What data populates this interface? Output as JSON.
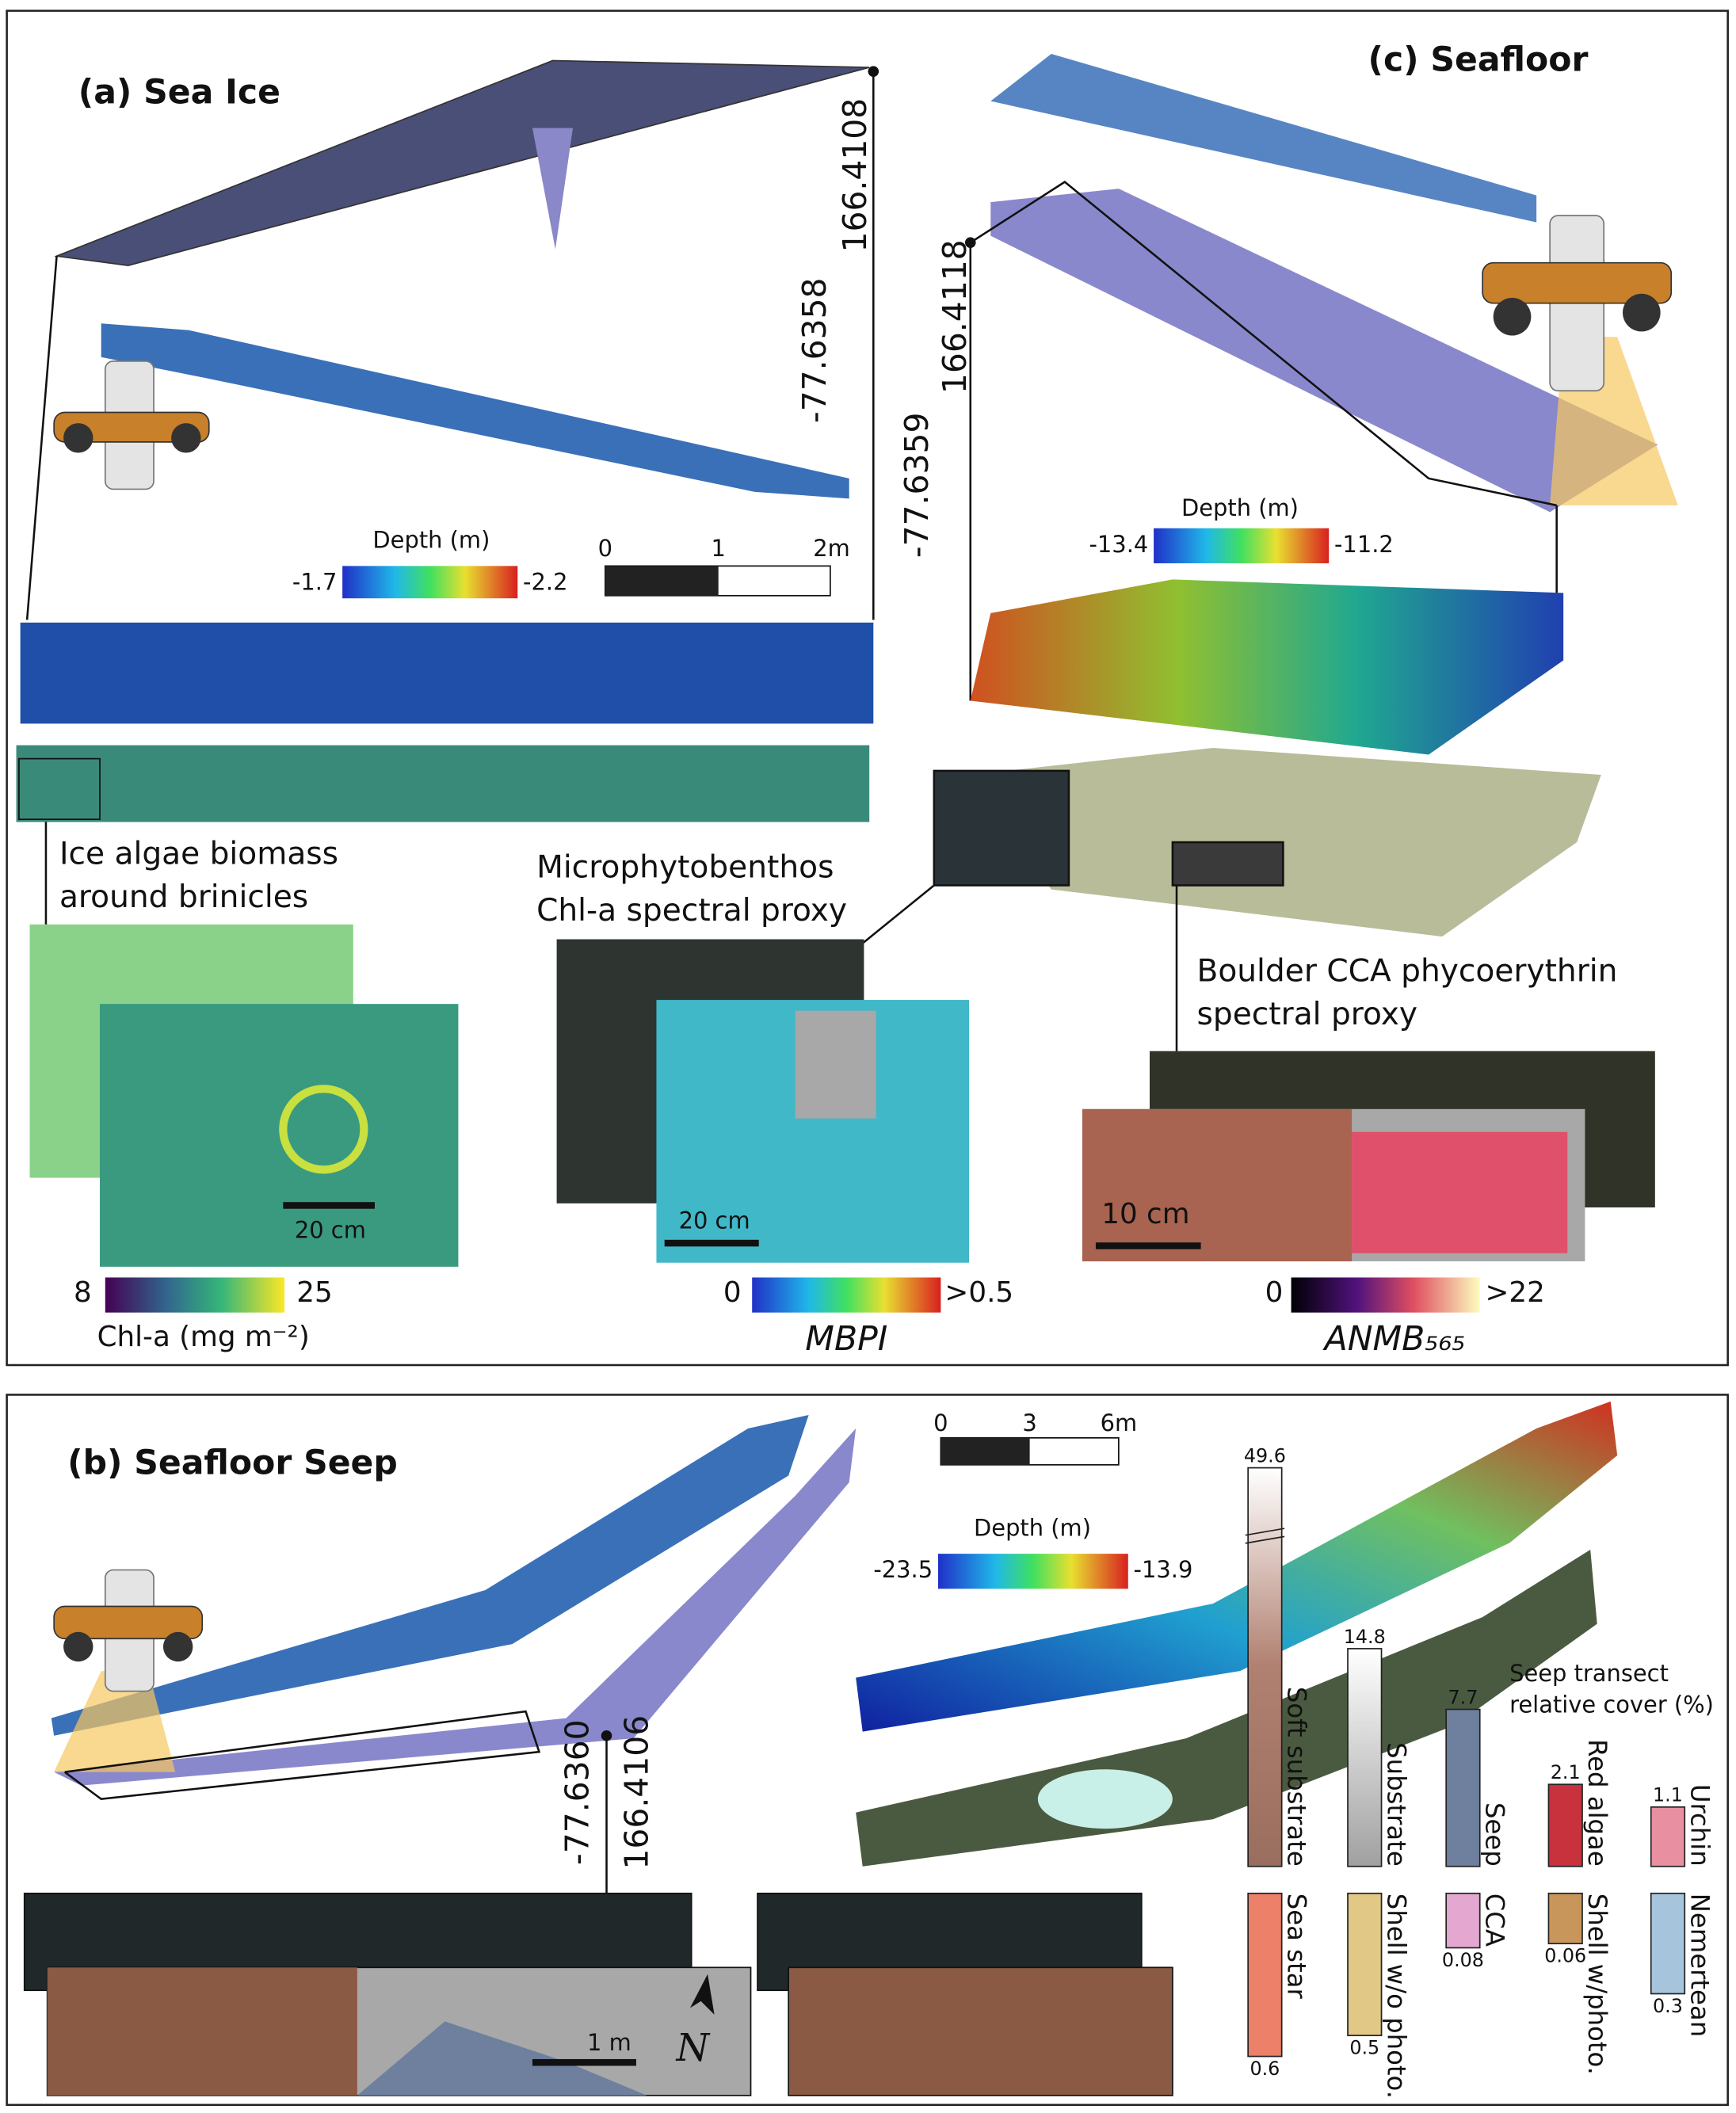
{
  "panel_a": {
    "title": "(a) Sea Ice",
    "longitude": "166.4108",
    "latitude": "-77.6358",
    "depth_label": "Depth (m)",
    "depth_min": "-1.7",
    "depth_max": "-2.2",
    "scale_ticks": [
      "0",
      "1",
      "2m"
    ],
    "caption_lines": [
      "Ice algae biomass",
      "around brinicles"
    ],
    "scale_bar": "20 cm",
    "colorbar_min": "8",
    "colorbar_max": "25",
    "colorbar_label": "Chl-a (mg m⁻²)"
  },
  "panel_c": {
    "title": "(c) Seafloor",
    "longitude": "166.4118",
    "latitude": "-77.6359",
    "depth_label": "Depth (m)",
    "depth_min": "-13.4",
    "depth_max": "-11.2",
    "mpb_caption_lines": [
      "Microphytobenthos",
      "Chl-a spectral proxy"
    ],
    "mpb_scale_bar": "20 cm",
    "mpb_colorbar_min": "0",
    "mpb_colorbar_max": ">0.5",
    "mpb_colorbar_label": "MBPI",
    "cca_caption_lines": [
      "Boulder CCA phycoerythrin",
      "spectral proxy"
    ],
    "cca_scale_bar": "10 cm",
    "cca_colorbar_min": "0",
    "cca_colorbar_max": ">22",
    "cca_colorbar_label": "ANMB₅₆₅"
  },
  "panel_b": {
    "title": "(b) Seafloor Seep",
    "scale_ticks": [
      "0",
      "3",
      "6m"
    ],
    "depth_label": "Depth (m)",
    "depth_min": "-23.5",
    "depth_max": "-13.9",
    "latitude": "-77.6360",
    "longitude": "166.4106",
    "map_scale_bar": "1 m",
    "north": "N",
    "cover": {
      "title_lines": [
        "Seep transect",
        "relative cover (%)"
      ],
      "upper": [
        {
          "name": "Soft substrate",
          "value": 49.6,
          "color": "#a27868"
        },
        {
          "name": "Substrate",
          "value": 14.8,
          "color": "#b4b4b4"
        },
        {
          "name": "Seep",
          "value": 7.7,
          "color": "#6e809e"
        },
        {
          "name": "Red algae",
          "value": 2.1,
          "color": "#c8323c"
        },
        {
          "name": "Urchin",
          "value": 1.1,
          "color": "#e890a2"
        }
      ],
      "lower": [
        {
          "name": "Sea star",
          "value": 0.6,
          "color": "#ec8068"
        },
        {
          "name": "Shell w/o photo.",
          "value": 0.5,
          "color": "#e2c886"
        },
        {
          "name": "CCA",
          "value": 0.08,
          "color": "#e4a8d0"
        },
        {
          "name": "Shell w/photo.",
          "value": 0.06,
          "color": "#c8965a"
        },
        {
          "name": "Nemertean",
          "value": 0.3,
          "color": "#a6c4dc"
        }
      ]
    }
  }
}
